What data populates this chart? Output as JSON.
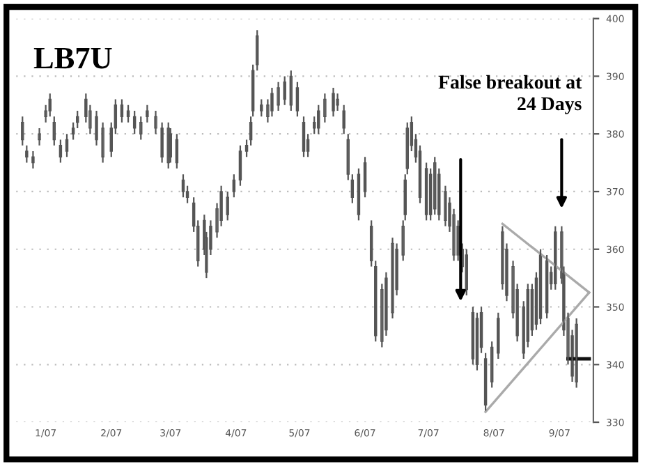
{
  "chart_data": {
    "type": "candlestick",
    "title": "LB7U",
    "annotations": [
      "False breakout at\n24 Days"
    ],
    "x": [
      "2006-12-21",
      "2006-12-23",
      "2006-12-26",
      "2006-12-29",
      "2007-01-01",
      "2007-01-03",
      "2007-01-05",
      "2007-01-08",
      "2007-01-11",
      "2007-01-14",
      "2007-01-16",
      "2007-01-20",
      "2007-01-22",
      "2007-01-25",
      "2007-01-28",
      "2007-02-01",
      "2007-02-03",
      "2007-02-06",
      "2007-02-09",
      "2007-02-12",
      "2007-02-15",
      "2007-02-18",
      "2007-02-22",
      "2007-02-25",
      "2007-02-28",
      "2007-03-01",
      "2007-03-04",
      "2007-03-07",
      "2007-03-09",
      "2007-03-12",
      "2007-03-14",
      "2007-03-17",
      "2007-03-18",
      "2007-03-20",
      "2007-03-23",
      "2007-03-25",
      "2007-03-28",
      "2007-03-31",
      "2007-04-03",
      "2007-04-06",
      "2007-04-08",
      "2007-04-09",
      "2007-04-11",
      "2007-04-13",
      "2007-04-16",
      "2007-04-18",
      "2007-04-21",
      "2007-04-24",
      "2007-04-27",
      "2007-04-30",
      "2007-05-03",
      "2007-05-05",
      "2007-05-08",
      "2007-05-10",
      "2007-05-13",
      "2007-05-17",
      "2007-05-19",
      "2007-05-22",
      "2007-05-24",
      "2007-05-26",
      "2007-05-29",
      "2007-06-01",
      "2007-06-04",
      "2007-06-06",
      "2007-06-09",
      "2007-06-11",
      "2007-06-14",
      "2007-06-16",
      "2007-06-19",
      "2007-06-20",
      "2007-06-21",
      "2007-06-23",
      "2007-06-25",
      "2007-06-27",
      "2007-06-30",
      "2007-07-02",
      "2007-07-04",
      "2007-07-06",
      "2007-07-09",
      "2007-07-11",
      "2007-07-13",
      "2007-07-15",
      "2007-07-17",
      "2007-07-19",
      "2007-07-22",
      "2007-07-24",
      "2007-07-26",
      "2007-07-28",
      "2007-07-31",
      "2007-08-03",
      "2007-08-05",
      "2007-08-07",
      "2007-08-10",
      "2007-08-12",
      "2007-08-15",
      "2007-08-17",
      "2007-08-19",
      "2007-08-21",
      "2007-08-23",
      "2007-08-26",
      "2007-08-28",
      "2007-08-30",
      "2007-09-02",
      "2007-09-03",
      "2007-09-05",
      "2007-09-07",
      "2007-09-09"
    ],
    "ohlc": [
      [
        379,
        383,
        378,
        382
      ],
      [
        377,
        378,
        375,
        376
      ],
      [
        376,
        377,
        374,
        375
      ],
      [
        379,
        381,
        378,
        380
      ],
      [
        383,
        385,
        382,
        384
      ],
      [
        386,
        387,
        383,
        384
      ],
      [
        379,
        383,
        378,
        382
      ],
      [
        378,
        379,
        375,
        376
      ],
      [
        377,
        380,
        376,
        379
      ],
      [
        381,
        382,
        379,
        380
      ],
      [
        382,
        384,
        381,
        383
      ],
      [
        386,
        387,
        382,
        383
      ],
      [
        381,
        385,
        380,
        384
      ],
      [
        383,
        384,
        378,
        379
      ],
      [
        376,
        382,
        375,
        381
      ],
      [
        381,
        382,
        376,
        377
      ],
      [
        381,
        386,
        380,
        385
      ],
      [
        385,
        386,
        382,
        383
      ],
      [
        383,
        385,
        382,
        384
      ],
      [
        383,
        384,
        380,
        381
      ],
      [
        380,
        383,
        379,
        382
      ],
      [
        384,
        385,
        382,
        383
      ],
      [
        381,
        384,
        380,
        383
      ],
      [
        381,
        382,
        375,
        376
      ],
      [
        375,
        382,
        374,
        381
      ],
      [
        380,
        381,
        375,
        376
      ],
      [
        375,
        380,
        374,
        379
      ],
      [
        372,
        373,
        369,
        370
      ],
      [
        369,
        371,
        368,
        370
      ],
      [
        368,
        369,
        363,
        364
      ],
      [
        358,
        365,
        357,
        364
      ],
      [
        365,
        366,
        359,
        360
      ],
      [
        356,
        363,
        355,
        362
      ],
      [
        364,
        365,
        359,
        360
      ],
      [
        363,
        368,
        362,
        367
      ],
      [
        370,
        371,
        364,
        365
      ],
      [
        366,
        370,
        365,
        369
      ],
      [
        372,
        373,
        369,
        370
      ],
      [
        372,
        378,
        371,
        377
      ],
      [
        378,
        379,
        376,
        377
      ],
      [
        379,
        383,
        378,
        382
      ],
      [
        391,
        392,
        383,
        384
      ],
      [
        392,
        398,
        391,
        397
      ],
      [
        385,
        386,
        383,
        384
      ],
      [
        383,
        386,
        382,
        385
      ],
      [
        387,
        388,
        383,
        384
      ],
      [
        385,
        389,
        384,
        388
      ],
      [
        389,
        390,
        385,
        386
      ],
      [
        385,
        391,
        384,
        390
      ],
      [
        388,
        389,
        383,
        384
      ],
      [
        377,
        383,
        376,
        382
      ],
      [
        379,
        380,
        376,
        377
      ],
      [
        381,
        383,
        380,
        382
      ],
      [
        384,
        385,
        380,
        381
      ],
      [
        383,
        387,
        382,
        386
      ],
      [
        387,
        388,
        383,
        384
      ],
      [
        385,
        387,
        384,
        386
      ],
      [
        384,
        385,
        380,
        381
      ],
      [
        373,
        380,
        372,
        379
      ],
      [
        372,
        373,
        368,
        369
      ],
      [
        366,
        374,
        365,
        373
      ],
      [
        375,
        376,
        369,
        370
      ],
      [
        358,
        365,
        357,
        364
      ],
      [
        357,
        358,
        344,
        345
      ],
      [
        344,
        354,
        343,
        353
      ],
      [
        355,
        356,
        345,
        346
      ],
      [
        349,
        362,
        348,
        361
      ],
      [
        360,
        361,
        352,
        353
      ],
      [
        359,
        365,
        358,
        364
      ],
      [
        372,
        373,
        365,
        366
      ],
      [
        374,
        382,
        373,
        381
      ],
      [
        382,
        383,
        377,
        378
      ],
      [
        376,
        380,
        375,
        379
      ],
      [
        377,
        378,
        368,
        369
      ],
      [
        366,
        375,
        365,
        374
      ],
      [
        373,
        374,
        365,
        366
      ],
      [
        367,
        376,
        366,
        375
      ],
      [
        373,
        374,
        365,
        366
      ],
      [
        365,
        371,
        364,
        370
      ],
      [
        368,
        369,
        363,
        364
      ],
      [
        359,
        367,
        358,
        366
      ],
      [
        364,
        365,
        358,
        359
      ],
      [
        357,
        361,
        356,
        360
      ],
      [
        359,
        360,
        352,
        353
      ],
      [
        341,
        350,
        340,
        349
      ],
      [
        348,
        349,
        339,
        340
      ],
      [
        343,
        350,
        342,
        349
      ],
      [
        341,
        342,
        332,
        333
      ],
      [
        337,
        344,
        336,
        343
      ],
      [
        348,
        349,
        341,
        342
      ],
      [
        354,
        364,
        353,
        363
      ],
      [
        360,
        361,
        351,
        352
      ],
      [
        349,
        358,
        348,
        357
      ],
      [
        353,
        354,
        344,
        345
      ],
      [
        342,
        351,
        341,
        350
      ],
      [
        353,
        354,
        343,
        344
      ],
      [
        346,
        354,
        345,
        353
      ],
      [
        355,
        356,
        346,
        347
      ],
      [
        348,
        360,
        347,
        359
      ],
      [
        358,
        359,
        348,
        349
      ],
      [
        354,
        357,
        353,
        356
      ],
      [
        363,
        364,
        353,
        354
      ],
      [
        355,
        364,
        354,
        363
      ],
      [
        356,
        357,
        345,
        346
      ],
      [
        341,
        349,
        340,
        348
      ],
      [
        345,
        346,
        337,
        338
      ],
      [
        337,
        348,
        336,
        347
      ]
    ],
    "color": "#555555",
    "series": [
      {
        "type": "line",
        "color": "#aaaaaa",
        "x": [
          "2007-08-05",
          "2007-09-15"
        ],
        "values": [
          364.4,
          352.5
        ]
      },
      {
        "type": "line",
        "color": "#aaaaaa",
        "x": [
          "2007-07-28",
          "2007-09-15"
        ],
        "values": [
          331.8,
          352.5
        ]
      },
      {
        "type": "line",
        "color": "#111111",
        "x": [
          "2007-09-05",
          "2007-09-15"
        ],
        "values": [
          341,
          341
        ]
      }
    ],
    "xlim": [
      "2006-12-18",
      "2007-09-17"
    ],
    "xticks": [
      {
        "value": "2007-01-01",
        "label": "1/07"
      },
      {
        "value": "2007-02-01",
        "label": "2/07"
      },
      {
        "value": "2007-03-01",
        "label": "3/07"
      },
      {
        "value": "2007-04-01",
        "label": "4/07"
      },
      {
        "value": "2007-05-01",
        "label": "5/07"
      },
      {
        "value": "2007-06-01",
        "label": "6/07"
      },
      {
        "value": "2007-07-01",
        "label": "7/07"
      },
      {
        "value": "2007-08-01",
        "label": "8/07"
      },
      {
        "value": "2007-09-01",
        "label": "9/07"
      }
    ],
    "ylim": [
      330,
      400
    ],
    "yticks": [
      330,
      340,
      350,
      360,
      370,
      380,
      390,
      400
    ],
    "grid": "y"
  }
}
